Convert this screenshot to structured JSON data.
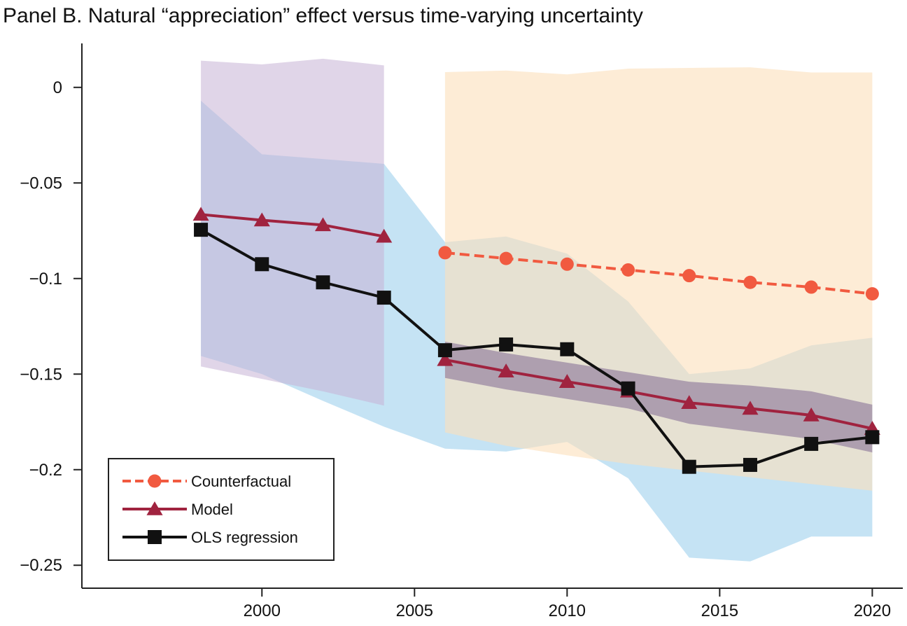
{
  "chart_data": {
    "type": "line",
    "title": "Panel B. Natural “appreciation” effect versus time-varying uncertainty",
    "xlabel": "",
    "ylabel": "",
    "xlim": [
      1994.1,
      2021.0
    ],
    "ylim": [
      -0.262,
      0.023
    ],
    "x_ticks": [
      2000,
      2005,
      2010,
      2015,
      2020
    ],
    "y_ticks": [
      0,
      -0.05,
      -0.1,
      -0.15,
      -0.2,
      -0.25
    ],
    "x_tick_labels": [
      "2000",
      "2005",
      "2010",
      "2015",
      "2020"
    ],
    "y_tick_labels": [
      "0",
      "−0.05",
      "−0.1",
      "−0.15",
      "−0.2",
      "−0.25"
    ],
    "grid": false,
    "legend_position": "bottom-left",
    "series": [
      {
        "name": "Counterfactual",
        "color": "#f15a40",
        "line_style": "dashed",
        "marker": "circle",
        "x": [
          2006,
          2008,
          2010,
          2012,
          2014,
          2016,
          2018,
          2020
        ],
        "values": [
          -0.0865,
          -0.0895,
          -0.0925,
          -0.0955,
          -0.0985,
          -0.102,
          -0.1045,
          -0.108
        ]
      },
      {
        "name": "Model",
        "color": "#a0233f",
        "line_style": "solid",
        "marker": "triangle",
        "x": [
          1998,
          2000,
          2002,
          2004,
          2006,
          2008,
          2010,
          2012,
          2014,
          2016,
          2018,
          2020
        ],
        "values": [
          -0.0665,
          -0.0695,
          -0.072,
          -0.078,
          -0.1425,
          -0.1485,
          -0.154,
          -0.159,
          -0.165,
          -0.168,
          -0.1715,
          -0.1785
        ]
      },
      {
        "name": "OLS regression",
        "color": "#111111",
        "line_style": "solid",
        "marker": "square",
        "x": [
          1998,
          2000,
          2002,
          2004,
          2006,
          2008,
          2010,
          2012,
          2014,
          2016,
          2018,
          2020
        ],
        "values": [
          -0.0745,
          -0.0925,
          -0.102,
          -0.11,
          -0.1375,
          -0.1345,
          -0.137,
          -0.1575,
          -0.1985,
          -0.1975,
          -0.1865,
          -0.183
        ]
      }
    ],
    "bands": [
      {
        "color": "#a6d4ee",
        "opacity": 0.65,
        "x": [
          1998,
          2000,
          2002,
          2004,
          2006,
          2008,
          2010,
          2012,
          2014,
          2016,
          2018,
          2020
        ],
        "upper": [
          -0.007,
          -0.035,
          -0.0375,
          -0.04,
          -0.081,
          -0.078,
          -0.087,
          -0.112,
          -0.15,
          -0.147,
          -0.135,
          -0.131
        ],
        "lower": [
          -0.1405,
          -0.15,
          -0.164,
          -0.1775,
          -0.189,
          -0.1905,
          -0.1855,
          -0.2045,
          -0.246,
          -0.248,
          -0.235,
          -0.235
        ]
      },
      {
        "color": "#c6b2d6",
        "opacity": 0.55,
        "x": [
          1998,
          2000,
          2002,
          2004
        ],
        "upper": [
          0.014,
          0.012,
          0.015,
          0.0115
        ],
        "lower": [
          -0.146,
          -0.1525,
          -0.159,
          -0.1665
        ]
      },
      {
        "color": "#fbdfba",
        "opacity": 0.6,
        "x": [
          2006,
          2008,
          2010,
          2012,
          2014,
          2016,
          2018,
          2020
        ],
        "upper": [
          0.008,
          0.0088,
          0.0068,
          0.0098,
          0.0102,
          0.0105,
          0.0078,
          0.0078
        ],
        "lower": [
          -0.1805,
          -0.1875,
          -0.1925,
          -0.197,
          -0.2005,
          -0.204,
          -0.2075,
          -0.211
        ]
      },
      {
        "color": "#6a4f86",
        "opacity": 0.45,
        "x": [
          2006,
          2008,
          2010,
          2012,
          2014,
          2016,
          2018,
          2020
        ],
        "upper": [
          -0.133,
          -0.139,
          -0.144,
          -0.149,
          -0.154,
          -0.156,
          -0.159,
          -0.166
        ],
        "lower": [
          -0.152,
          -0.158,
          -0.163,
          -0.168,
          -0.176,
          -0.18,
          -0.184,
          -0.191
        ]
      }
    ]
  }
}
